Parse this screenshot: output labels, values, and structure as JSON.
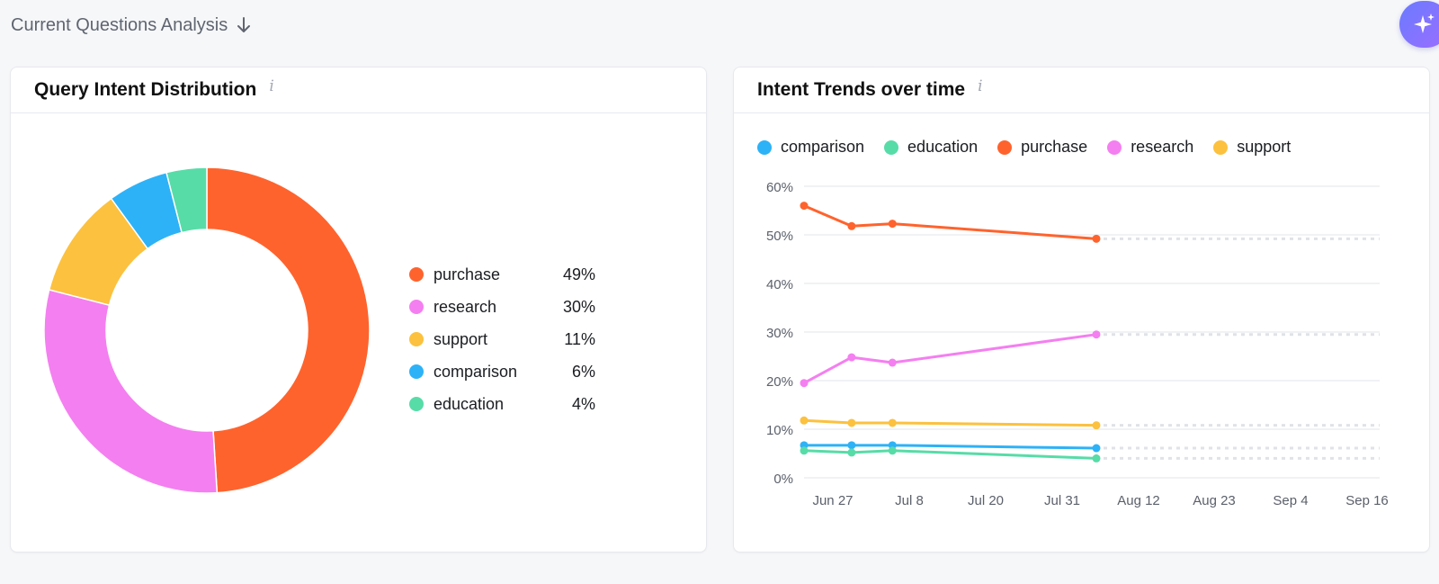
{
  "header": {
    "title": "Current Questions Analysis"
  },
  "cards": {
    "distribution": {
      "title": "Query Intent Distribution"
    },
    "trends": {
      "title": "Intent Trends over time"
    }
  },
  "colors": {
    "purchase": "#ff632d",
    "research": "#f47ff0",
    "support": "#fcc13e",
    "comparison": "#2db2f7",
    "education": "#57dca8"
  },
  "chart_data": [
    {
      "type": "pie",
      "title": "Query Intent Distribution",
      "slices": [
        {
          "name": "purchase",
          "value": 49,
          "label": "49%"
        },
        {
          "name": "research",
          "value": 30,
          "label": "30%"
        },
        {
          "name": "support",
          "value": 11,
          "label": "11%"
        },
        {
          "name": "comparison",
          "value": 6,
          "label": "6%"
        },
        {
          "name": "education",
          "value": 4,
          "label": "4%"
        }
      ]
    },
    {
      "type": "line",
      "title": "Intent Trends over time",
      "legend": [
        "comparison",
        "education",
        "purchase",
        "research",
        "support"
      ],
      "x_ticks": [
        "Jun 27",
        "Jul 8",
        "Jul 20",
        "Jul 31",
        "Aug 12",
        "Aug 23",
        "Sep 4",
        "Sep 16"
      ],
      "y_ticks": [
        "0%",
        "10%",
        "20%",
        "30%",
        "40%",
        "50%",
        "60%"
      ],
      "ylim": [
        0,
        60
      ],
      "xlim": [
        "2025-06-25",
        "2025-09-19"
      ],
      "grid": true,
      "series": [
        {
          "name": "purchase",
          "x": [
            "2025-06-25",
            "2025-07-02",
            "2025-07-08",
            "2025-08-07"
          ],
          "y": [
            56,
            51.8,
            52.3,
            49.2
          ]
        },
        {
          "name": "research",
          "x": [
            "2025-06-25",
            "2025-07-02",
            "2025-07-08",
            "2025-08-07"
          ],
          "y": [
            19.5,
            24.8,
            23.7,
            29.5
          ]
        },
        {
          "name": "support",
          "x": [
            "2025-06-25",
            "2025-07-02",
            "2025-07-08",
            "2025-08-07"
          ],
          "y": [
            11.8,
            11.3,
            11.3,
            10.8
          ]
        },
        {
          "name": "comparison",
          "x": [
            "2025-06-25",
            "2025-07-02",
            "2025-07-08",
            "2025-08-07"
          ],
          "y": [
            6.7,
            6.7,
            6.7,
            6.1
          ]
        },
        {
          "name": "education",
          "x": [
            "2025-06-25",
            "2025-07-02",
            "2025-07-08",
            "2025-08-07"
          ],
          "y": [
            5.6,
            5.2,
            5.6,
            4.0
          ]
        }
      ]
    }
  ]
}
